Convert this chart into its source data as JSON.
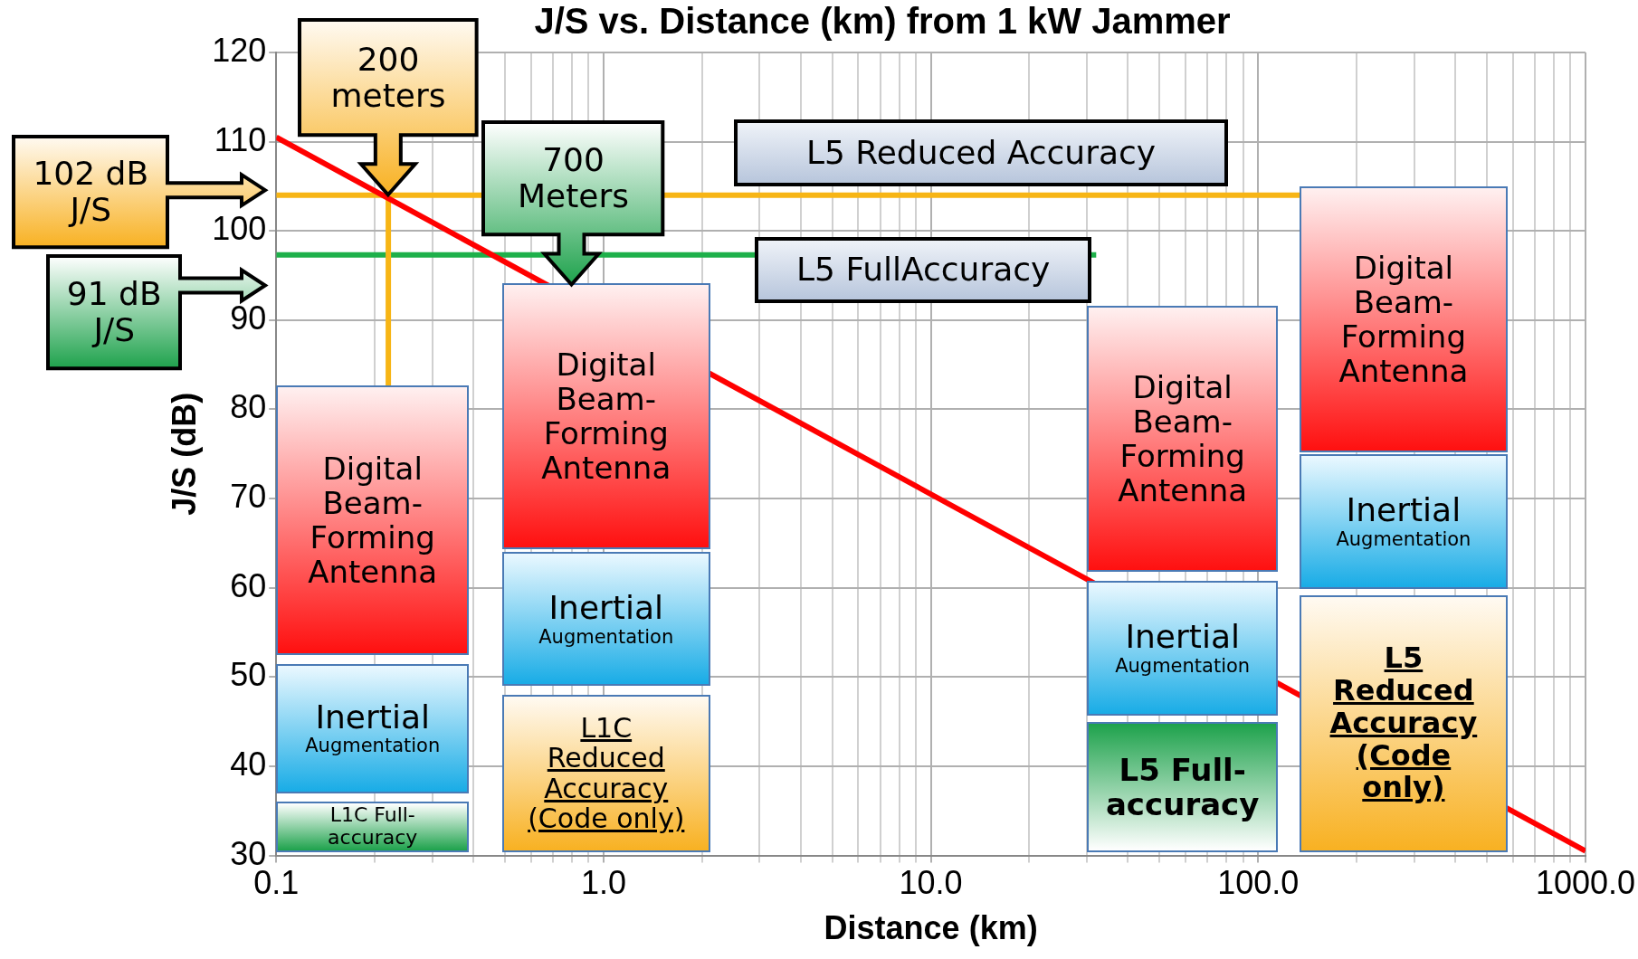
{
  "chart_data": {
    "type": "line",
    "title": "J/S vs. Distance (km) from 1 kW Jammer",
    "xlabel": "Distance (km)",
    "ylabel": "J/S (dB)",
    "log": "x",
    "grid": true,
    "marker": "none",
    "xlim": [
      0.1,
      1000
    ],
    "ylim": [
      30,
      120
    ],
    "xticks": [
      0.1,
      {
        "value": 0.2,
        "label": null
      },
      {
        "value": 0.3,
        "label": null
      },
      {
        "value": 0.4,
        "label": null
      },
      {
        "value": 0.5,
        "label": null
      },
      {
        "value": 0.6,
        "label": null
      },
      {
        "value": 0.7,
        "label": null
      },
      {
        "value": 0.8,
        "label": null
      },
      {
        "value": 0.9,
        "label": null
      },
      {
        "value": 1,
        "label": "1.0"
      },
      {
        "value": 2,
        "label": null
      },
      {
        "value": 3,
        "label": null
      },
      {
        "value": 4,
        "label": null
      },
      {
        "value": 5,
        "label": null
      },
      {
        "value": 6,
        "label": null
      },
      {
        "value": 7,
        "label": null
      },
      {
        "value": 8,
        "label": null
      },
      {
        "value": 9,
        "label": null
      },
      {
        "value": 10,
        "label": "10.0"
      },
      {
        "value": 20,
        "label": null
      },
      {
        "value": 30,
        "label": null
      },
      {
        "value": 40,
        "label": null
      },
      {
        "value": 50,
        "label": null
      },
      {
        "value": 60,
        "label": null
      },
      {
        "value": 70,
        "label": null
      },
      {
        "value": 80,
        "label": null
      },
      {
        "value": 90,
        "label": null
      },
      {
        "value": 100,
        "label": "100.0"
      },
      {
        "value": 200,
        "label": null
      },
      {
        "value": 300,
        "label": null
      },
      {
        "value": 400,
        "label": null
      },
      {
        "value": 500,
        "label": null
      },
      {
        "value": 600,
        "label": null
      },
      {
        "value": 700,
        "label": null
      },
      {
        "value": 800,
        "label": null
      },
      {
        "value": 900,
        "label": null
      },
      {
        "value": 1000,
        "label": "1000.0"
      }
    ],
    "yticks": [
      30,
      40,
      50,
      60,
      70,
      80,
      90,
      100,
      110,
      120
    ],
    "series": [
      {
        "color": "#ff0000",
        "x": [
          0.1,
          1000
        ],
        "values": [
          110.5,
          30.5
        ]
      },
      {
        "color": "#f7b515",
        "x": [
          0.1,
          134
        ],
        "values": [
          104,
          104
        ]
      },
      {
        "color": "#f7b515",
        "x": [
          0.22,
          0.22
        ],
        "values": [
          104,
          82.6
        ]
      },
      {
        "color": "#1eb04a",
        "x": [
          0.1,
          32
        ],
        "values": [
          97.3,
          97.3
        ]
      }
    ],
    "annotations": [
      "200\nmeters",
      "700\nMeters",
      "102 dB\nJ/S",
      "91 dB\nJ/S",
      "L5 Reduced Accuracy",
      "L5 FullAccuracy",
      "Digital\nBeam-\nForming\nAntenna",
      "Inertial\nAugmentation",
      "L1C Full-\naccuracy",
      "Digital\nBeam-\nForming\nAntenna",
      "Inertial\nAugmentation",
      "L1C\nReduced\nAccuracy\n(Code only)",
      "Digital\nBeam-\nForming\nAntenna",
      "Inertial\nAugmentation",
      "L5 Full-\naccuracy",
      "Digital\nBeam-\nForming\nAntenna",
      "Inertial\nAugmentation",
      "L5\nReduced\nAccuracy\n(Code\nonly)"
    ]
  }
}
